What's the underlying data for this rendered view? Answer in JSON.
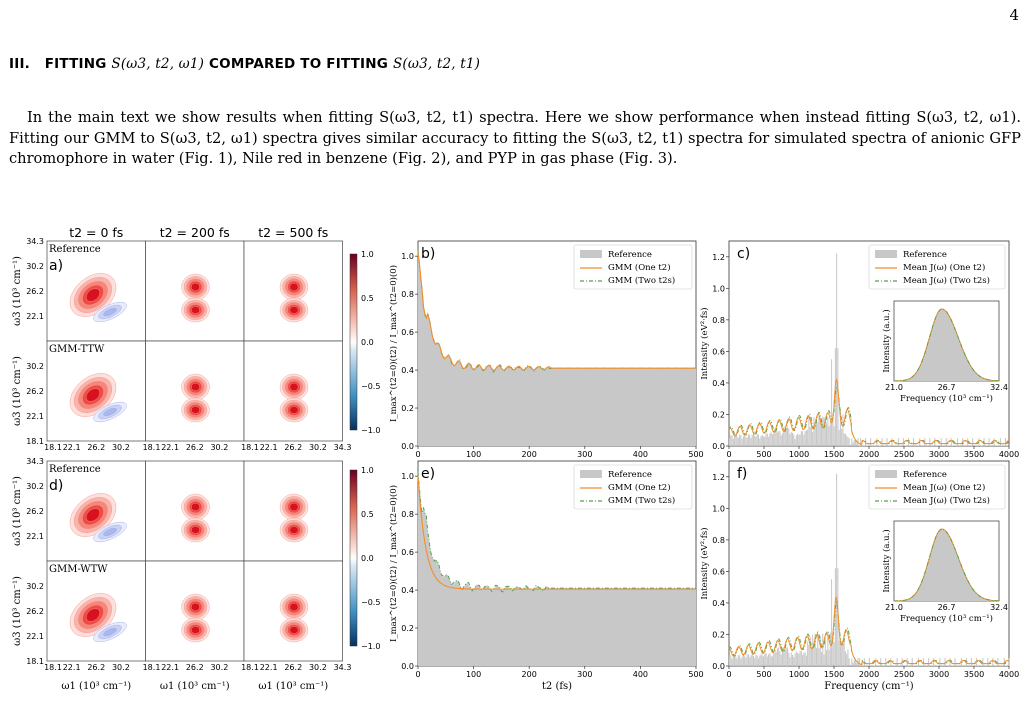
{
  "page_number": "4",
  "section": {
    "numeral": "III.",
    "title_a": "FITTING ",
    "math_a": "S(ω3, t2, ω1)",
    "title_b": " COMPARED TO FITTING ",
    "math_b": "S(ω3, t2, t1)"
  },
  "paragraph": "In the main text we show results when fitting S(ω3, t2, t1) spectra. Here we show performance when instead fitting S(ω3, t2, ω1). Fitting our GMM to S(ω3, t2, ω1) spectra gives similar accuracy to fitting the S(ω3, t2, t1) spectra for simulated spectra of anionic GFP chromophore in water (Fig. 1), Nile red in benzene (Fig. 2), and PYP in gas phase (Fig. 3).",
  "figure": {
    "col_headers": [
      "t2 = 0 fs",
      "t2 = 200 fs",
      "t2 = 500 fs"
    ],
    "row_labels": [
      "Reference",
      "GMM-TTW",
      "Reference",
      "GMM-WTW"
    ],
    "panel_letters": [
      "a)",
      "b)",
      "c)",
      "d)",
      "e)",
      "f)"
    ],
    "ticks_2d": [
      "18.1",
      "22.1",
      "26.2",
      "30.2",
      "34.3"
    ],
    "ylabel_2d": "ω3 (10³ cm⁻¹)",
    "xlabel_2d": "ω1 (10³ cm⁻¹)",
    "colorbar_ticks": [
      "1.0",
      "0.5",
      "0.0",
      "−0.5",
      "−1.0"
    ],
    "decay": {
      "ylabel": "I_max^(t2=0)(t2) / I_max^(t2=0)(0)",
      "xlabel": "t2 (fs)",
      "xticks": [
        "0",
        "100",
        "200",
        "300",
        "400",
        "500"
      ],
      "yticks": [
        "0.0",
        "0.2",
        "0.4",
        "0.6",
        "0.8",
        "1.0"
      ],
      "legend": [
        "Reference",
        "GMM (One t2)",
        "GMM (Two t2s)"
      ]
    },
    "spectral": {
      "ylabel": "Intensity (eV²·fs)",
      "xlabel": "Frequency (cm⁻¹)",
      "xticks": [
        "0",
        "500",
        "1000",
        "1500",
        "2000",
        "2500",
        "3000",
        "3500",
        "4000"
      ],
      "yticks_top": [
        "0.0",
        "0.2",
        "0.4",
        "0.6",
        "0.8",
        "1.0",
        "1.2"
      ],
      "yticks_bot": [
        "0.0",
        "0.2",
        "0.4",
        "0.6",
        "0.8",
        "1.0",
        "1.2"
      ],
      "legend": [
        "Reference",
        "Mean J(ω) (One t2)",
        "Mean J(ω) (Two t2s)"
      ],
      "inset_ylabel": "Intensity (a.u.)",
      "inset_xlabel": "Frequency (10³ cm⁻¹)",
      "inset_xticks": [
        "21.0",
        "26.7",
        "32.4"
      ]
    },
    "colors": {
      "ref": "#c8c8c8",
      "one": "#f28e2b",
      "two": "#59a14f",
      "red": "#d7191c",
      "blue": "#2c7bb6"
    }
  }
}
